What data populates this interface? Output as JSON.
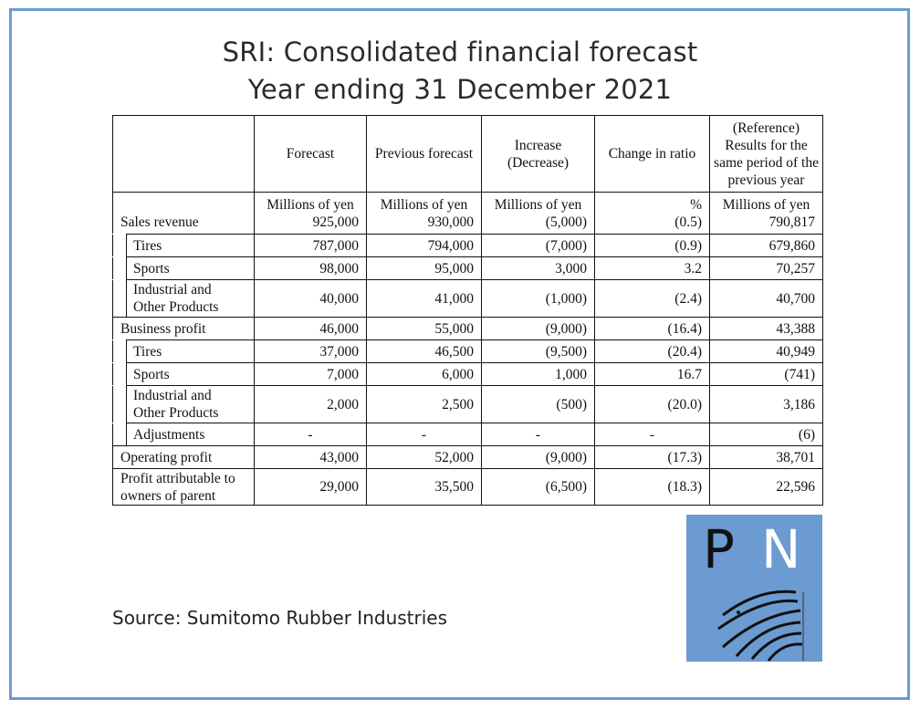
{
  "title_line1": "SRI: Consolidated financial forecast",
  "title_line2": "Year ending 31 December 2021",
  "table": {
    "headers": [
      "",
      "Forecast",
      "Previous forecast",
      "Increase (Decrease)",
      "Change in ratio",
      "(Reference) Results for the same period of the previous year"
    ],
    "units": [
      "Millions of yen",
      "Millions of yen",
      "Millions of yen",
      "%",
      "Millions of yen"
    ],
    "rows": [
      {
        "label": "Sales revenue",
        "sub": false,
        "values": [
          "925,000",
          "930,000",
          "(5,000)",
          "(0.5)",
          "790,817"
        ]
      },
      {
        "label": "Tires",
        "sub": true,
        "values": [
          "787,000",
          "794,000",
          "(7,000)",
          "(0.9)",
          "679,860"
        ]
      },
      {
        "label": "Sports",
        "sub": true,
        "values": [
          "98,000",
          "95,000",
          "3,000",
          "3.2",
          "70,257"
        ]
      },
      {
        "label": "Industrial and Other Products",
        "sub": true,
        "values": [
          "40,000",
          "41,000",
          "(1,000)",
          "(2.4)",
          "40,700"
        ]
      },
      {
        "label": "Business profit",
        "sub": false,
        "values": [
          "46,000",
          "55,000",
          "(9,000)",
          "(16.4)",
          "43,388"
        ]
      },
      {
        "label": "Tires",
        "sub": true,
        "values": [
          "37,000",
          "46,500",
          "(9,500)",
          "(20.4)",
          "40,949"
        ]
      },
      {
        "label": "Sports",
        "sub": true,
        "values": [
          "7,000",
          "6,000",
          "1,000",
          "16.7",
          "(741)"
        ]
      },
      {
        "label": "Industrial and Other Products",
        "sub": true,
        "values": [
          "2,000",
          "2,500",
          "(500)",
          "(20.0)",
          "3,186"
        ]
      },
      {
        "label": "Adjustments",
        "sub": true,
        "values": [
          "-",
          "-",
          "-",
          "-",
          "(6)"
        ]
      },
      {
        "label": "Operating profit",
        "sub": false,
        "values": [
          "43,000",
          "52,000",
          "(9,000)",
          "(17.3)",
          "38,701"
        ]
      },
      {
        "label": "Profit attributable to owners of parent",
        "sub": false,
        "values": [
          "29,000",
          "35,500",
          "(6,500)",
          "(18.3)",
          "22,596"
        ]
      }
    ]
  },
  "source": "Source: Sumitomo Rubber Industries",
  "logo": {
    "text": "PN",
    "bg_color": "#6b9bd1"
  }
}
